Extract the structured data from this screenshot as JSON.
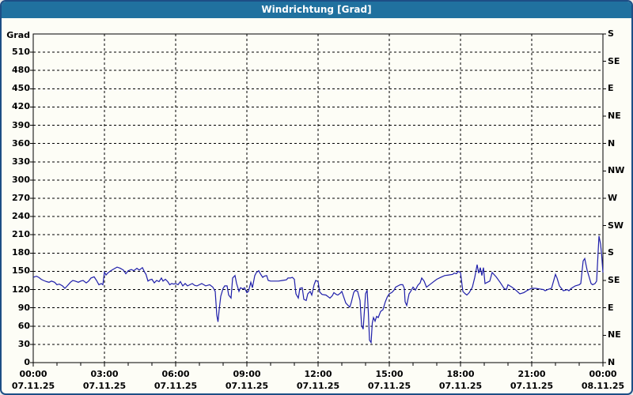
{
  "window": {
    "title": "Windrichtung [Grad]"
  },
  "colors": {
    "title_bar": "#20719f",
    "title_text": "#ffffff",
    "window_border": "#1d4e85",
    "background": "#fdfdf6",
    "grid": "#000000",
    "axis_text": "#000000",
    "line": "#1e1eaa"
  },
  "chart_data": {
    "type": "line",
    "title": "Windrichtung [Grad]",
    "ylabel": "Grad",
    "xlabel": "",
    "ylim": [
      0,
      540
    ],
    "xlim_minutes": [
      0,
      1440
    ],
    "grid": true,
    "legend": "none",
    "y_ticks": [
      {
        "value": 0,
        "label": "0"
      },
      {
        "value": 30,
        "label": "30"
      },
      {
        "value": 60,
        "label": "60"
      },
      {
        "value": 90,
        "label": "90"
      },
      {
        "value": 120,
        "label": "120"
      },
      {
        "value": 150,
        "label": "150"
      },
      {
        "value": 180,
        "label": "180"
      },
      {
        "value": 210,
        "label": "210"
      },
      {
        "value": 240,
        "label": "240"
      },
      {
        "value": 270,
        "label": "270"
      },
      {
        "value": 300,
        "label": "300"
      },
      {
        "value": 330,
        "label": "330"
      },
      {
        "value": 360,
        "label": "360"
      },
      {
        "value": 390,
        "label": "390"
      },
      {
        "value": 420,
        "label": "420"
      },
      {
        "value": 450,
        "label": "450"
      },
      {
        "value": 480,
        "label": "480"
      },
      {
        "value": 510,
        "label": "510"
      }
    ],
    "right_axis_ticks": [
      {
        "value": 540,
        "label": "S"
      },
      {
        "value": 495,
        "label": "SE"
      },
      {
        "value": 450,
        "label": "E"
      },
      {
        "value": 405,
        "label": "NE"
      },
      {
        "value": 360,
        "label": "N"
      },
      {
        "value": 315,
        "label": "NW"
      },
      {
        "value": 270,
        "label": "W"
      },
      {
        "value": 225,
        "label": "SW"
      },
      {
        "value": 180,
        "label": "S"
      },
      {
        "value": 135,
        "label": "SE"
      },
      {
        "value": 90,
        "label": "E"
      },
      {
        "value": 45,
        "label": "NE"
      },
      {
        "value": 0,
        "label": "N"
      }
    ],
    "x_ticks": [
      {
        "minutes": 0,
        "time": "00:00",
        "date": "07.11.25"
      },
      {
        "minutes": 180,
        "time": "03:00",
        "date": "07.11.25"
      },
      {
        "minutes": 360,
        "time": "06:00",
        "date": "07.11.25"
      },
      {
        "minutes": 540,
        "time": "09:00",
        "date": "07.11.25"
      },
      {
        "minutes": 720,
        "time": "12:00",
        "date": "07.11.25"
      },
      {
        "minutes": 900,
        "time": "15:00",
        "date": "07.11.25"
      },
      {
        "minutes": 1080,
        "time": "18:00",
        "date": "07.11.25"
      },
      {
        "minutes": 1260,
        "time": "21:00",
        "date": "07.11.25"
      },
      {
        "minutes": 1440,
        "time": "00:00",
        "date": "08.11.25"
      }
    ],
    "x_minor_tick_minutes": 60,
    "series": [
      {
        "name": "Windrichtung",
        "unit": "Grad",
        "color": "#1e1eaa",
        "points_minutes_degrees": [
          [
            0,
            140
          ],
          [
            8,
            142
          ],
          [
            14,
            140
          ],
          [
            20,
            137
          ],
          [
            26,
            135
          ],
          [
            34,
            133
          ],
          [
            40,
            132
          ],
          [
            46,
            134
          ],
          [
            54,
            132
          ],
          [
            60,
            128
          ],
          [
            66,
            129
          ],
          [
            74,
            126
          ],
          [
            80,
            122
          ],
          [
            86,
            126
          ],
          [
            94,
            132
          ],
          [
            100,
            135
          ],
          [
            106,
            134
          ],
          [
            114,
            132
          ],
          [
            120,
            134
          ],
          [
            126,
            135
          ],
          [
            134,
            131
          ],
          [
            140,
            134
          ],
          [
            146,
            139
          ],
          [
            154,
            141
          ],
          [
            160,
            135
          ],
          [
            166,
            128
          ],
          [
            172,
            130
          ],
          [
            176,
            128
          ],
          [
            180,
            149
          ],
          [
            184,
            144
          ],
          [
            188,
            147
          ],
          [
            196,
            151
          ],
          [
            204,
            154
          ],
          [
            212,
            157
          ],
          [
            220,
            155
          ],
          [
            228,
            152
          ],
          [
            234,
            146
          ],
          [
            240,
            151
          ],
          [
            248,
            153
          ],
          [
            254,
            151
          ],
          [
            262,
            155
          ],
          [
            268,
            152
          ],
          [
            276,
            156
          ],
          [
            282,
            148
          ],
          [
            285,
            145
          ],
          [
            290,
            134
          ],
          [
            295,
            136
          ],
          [
            300,
            137
          ],
          [
            306,
            131
          ],
          [
            312,
            135
          ],
          [
            318,
            133
          ],
          [
            324,
            139
          ],
          [
            328,
            134
          ],
          [
            334,
            137
          ],
          [
            340,
            133
          ],
          [
            345,
            128
          ],
          [
            350,
            130
          ],
          [
            355,
            129
          ],
          [
            360,
            130
          ],
          [
            366,
            128
          ],
          [
            372,
            133
          ],
          [
            378,
            126
          ],
          [
            384,
            130
          ],
          [
            390,
            126
          ],
          [
            396,
            128
          ],
          [
            402,
            130
          ],
          [
            408,
            127
          ],
          [
            414,
            126
          ],
          [
            420,
            128
          ],
          [
            426,
            130
          ],
          [
            436,
            126
          ],
          [
            446,
            128
          ],
          [
            454,
            124
          ],
          [
            460,
            117
          ],
          [
            464,
            78
          ],
          [
            467,
            67
          ],
          [
            470,
            87
          ],
          [
            474,
            109
          ],
          [
            480,
            122
          ],
          [
            484,
            126
          ],
          [
            490,
            126
          ],
          [
            494,
            111
          ],
          [
            500,
            106
          ],
          [
            504,
            139
          ],
          [
            510,
            143
          ],
          [
            514,
            130
          ],
          [
            520,
            117
          ],
          [
            524,
            123
          ],
          [
            530,
            121
          ],
          [
            534,
            123
          ],
          [
            540,
            115
          ],
          [
            544,
            117
          ],
          [
            550,
            132
          ],
          [
            554,
            123
          ],
          [
            560,
            143
          ],
          [
            564,
            148
          ],
          [
            570,
            151
          ],
          [
            574,
            146
          ],
          [
            580,
            140
          ],
          [
            584,
            142
          ],
          [
            590,
            143
          ],
          [
            594,
            135
          ],
          [
            600,
            134
          ],
          [
            610,
            134
          ],
          [
            620,
            134
          ],
          [
            630,
            135
          ],
          [
            640,
            136
          ],
          [
            644,
            139
          ],
          [
            650,
            139
          ],
          [
            655,
            140
          ],
          [
            660,
            137
          ],
          [
            664,
            113
          ],
          [
            670,
            106
          ],
          [
            674,
            122
          ],
          [
            680,
            123
          ],
          [
            684,
            104
          ],
          [
            690,
            102
          ],
          [
            694,
            113
          ],
          [
            700,
            117
          ],
          [
            704,
            111
          ],
          [
            710,
            128
          ],
          [
            714,
            135
          ],
          [
            720,
            133
          ],
          [
            724,
            116
          ],
          [
            730,
            112
          ],
          [
            740,
            111
          ],
          [
            750,
            106
          ],
          [
            756,
            110
          ],
          [
            760,
            115
          ],
          [
            766,
            112
          ],
          [
            770,
            111
          ],
          [
            776,
            114
          ],
          [
            780,
            117
          ],
          [
            790,
            98
          ],
          [
            800,
            91
          ],
          [
            804,
            99
          ],
          [
            810,
            115
          ],
          [
            814,
            119
          ],
          [
            820,
            117
          ],
          [
            826,
            102
          ],
          [
            830,
            61
          ],
          [
            834,
            55
          ],
          [
            840,
            113
          ],
          [
            844,
            119
          ],
          [
            847,
            83
          ],
          [
            850,
            37
          ],
          [
            854,
            33
          ],
          [
            857,
            65
          ],
          [
            860,
            74
          ],
          [
            864,
            68
          ],
          [
            868,
            76
          ],
          [
            872,
            74
          ],
          [
            878,
            84
          ],
          [
            884,
            87
          ],
          [
            890,
            100
          ],
          [
            895,
            108
          ],
          [
            900,
            113
          ],
          [
            906,
            115
          ],
          [
            912,
            119
          ],
          [
            916,
            124
          ],
          [
            922,
            126
          ],
          [
            928,
            128
          ],
          [
            934,
            128
          ],
          [
            938,
            122
          ],
          [
            940,
            100
          ],
          [
            944,
            94
          ],
          [
            950,
            113
          ],
          [
            954,
            117
          ],
          [
            960,
            124
          ],
          [
            966,
            119
          ],
          [
            972,
            127
          ],
          [
            978,
            131
          ],
          [
            982,
            139
          ],
          [
            988,
            134
          ],
          [
            994,
            124
          ],
          [
            1000,
            127
          ],
          [
            1010,
            132
          ],
          [
            1020,
            137
          ],
          [
            1030,
            140
          ],
          [
            1040,
            143
          ],
          [
            1050,
            144
          ],
          [
            1060,
            145
          ],
          [
            1064,
            147
          ],
          [
            1070,
            146
          ],
          [
            1074,
            150
          ],
          [
            1080,
            148
          ],
          [
            1086,
            117
          ],
          [
            1092,
            113
          ],
          [
            1096,
            111
          ],
          [
            1102,
            115
          ],
          [
            1110,
            124
          ],
          [
            1116,
            140
          ],
          [
            1122,
            161
          ],
          [
            1126,
            147
          ],
          [
            1130,
            156
          ],
          [
            1134,
            143
          ],
          [
            1138,
            156
          ],
          [
            1142,
            130
          ],
          [
            1148,
            132
          ],
          [
            1154,
            134
          ],
          [
            1160,
            148
          ],
          [
            1170,
            141
          ],
          [
            1180,
            132
          ],
          [
            1190,
            122
          ],
          [
            1196,
            120
          ],
          [
            1200,
            128
          ],
          [
            1210,
            124
          ],
          [
            1220,
            119
          ],
          [
            1230,
            113
          ],
          [
            1240,
            115
          ],
          [
            1250,
            119
          ],
          [
            1260,
            122
          ],
          [
            1270,
            122
          ],
          [
            1280,
            121
          ],
          [
            1290,
            120
          ],
          [
            1294,
            118
          ],
          [
            1300,
            120
          ],
          [
            1310,
            122
          ],
          [
            1320,
            145
          ],
          [
            1324,
            139
          ],
          [
            1330,
            126
          ],
          [
            1340,
            118
          ],
          [
            1350,
            120
          ],
          [
            1354,
            118
          ],
          [
            1360,
            122
          ],
          [
            1370,
            126
          ],
          [
            1380,
            128
          ],
          [
            1384,
            130
          ],
          [
            1390,
            167
          ],
          [
            1394,
            171
          ],
          [
            1400,
            152
          ],
          [
            1410,
            130
          ],
          [
            1414,
            128
          ],
          [
            1420,
            130
          ],
          [
            1424,
            134
          ],
          [
            1430,
            208
          ],
          [
            1434,
            195
          ],
          [
            1437,
            175
          ],
          [
            1440,
            148
          ]
        ]
      }
    ]
  }
}
